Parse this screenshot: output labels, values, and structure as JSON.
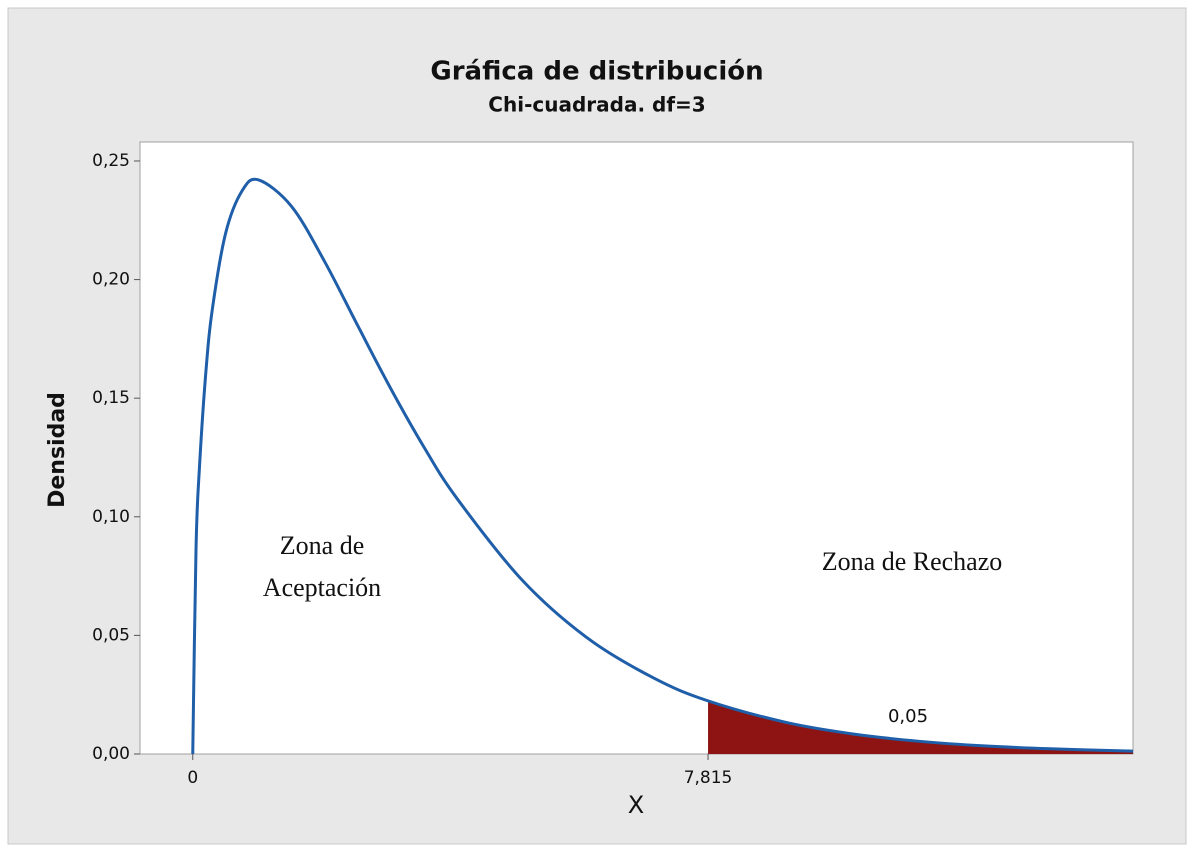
{
  "chart_data": {
    "type": "line",
    "title": "Gráfica de distribución",
    "subtitle": "Chi-cuadrada. df=3",
    "xlabel": "X",
    "ylabel": "Densidad",
    "x": [
      0,
      0.05,
      0.1,
      0.2,
      0.3,
      0.5,
      0.75,
      1,
      1.5,
      2,
      2.5,
      3,
      3.5,
      4,
      5,
      6,
      7,
      7.815,
      9,
      10,
      11,
      12,
      13,
      14.26
    ],
    "series": [
      {
        "name": "Densidad",
        "color": "#1f5ea8",
        "values": [
          0,
          0.087,
          0.12,
          0.1614,
          0.1881,
          0.2197,
          0.2375,
          0.242,
          0.2308,
          0.2076,
          0.1807,
          0.1542,
          0.1297,
          0.108,
          0.0732,
          0.0486,
          0.0319,
          0.0224,
          0.0133,
          0.0085,
          0.0054,
          0.0034,
          0.0022,
          0.0012
        ]
      }
    ],
    "area": {
      "from": 7.815,
      "value": 0.05,
      "value_label": "0,05",
      "color": "#8e1414"
    },
    "xlim": [
      -0.8,
      14.26
    ],
    "ylim": [
      0,
      0.258
    ],
    "xticks": [
      0,
      {
        "value": 7.815,
        "label": "7,815"
      }
    ],
    "yticks": [
      {
        "value": 0,
        "label": "0,00"
      },
      {
        "value": 0.05,
        "label": "0,05"
      },
      {
        "value": 0.1,
        "label": "0,10"
      },
      {
        "value": 0.15,
        "label": "0,15"
      },
      {
        "value": 0.2,
        "label": "0,20"
      },
      {
        "value": 0.25,
        "label": "0,25"
      }
    ],
    "annotations": [
      "Zona de",
      "Aceptación",
      "Zona de Rechazo"
    ]
  }
}
